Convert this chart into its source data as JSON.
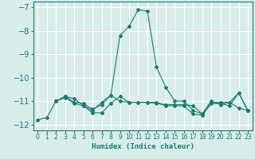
{
  "title": "",
  "xlabel": "Humidex (Indice chaleur)",
  "ylabel": "",
  "bg_color": "#d8ecea",
  "grid_color": "#ffffff",
  "line_color": "#1a7a6e",
  "xlim": [
    -0.5,
    23.5
  ],
  "ylim": [
    -12.25,
    -6.75
  ],
  "yticks": [
    -12,
    -11,
    -10,
    -9,
    -8,
    -7
  ],
  "xticks": [
    0,
    1,
    2,
    3,
    4,
    5,
    6,
    7,
    8,
    9,
    10,
    11,
    12,
    13,
    14,
    15,
    16,
    17,
    18,
    19,
    20,
    21,
    22,
    23
  ],
  "series": [
    {
      "x": [
        0,
        1,
        2,
        3,
        4,
        5,
        6,
        7,
        8,
        9,
        10,
        11,
        12,
        13,
        14,
        15,
        16,
        17,
        18,
        19,
        20,
        21,
        22,
        23
      ],
      "y": [
        -11.8,
        -11.7,
        -11.0,
        -10.8,
        -10.9,
        -11.2,
        -11.4,
        -11.05,
        -10.75,
        -8.2,
        -7.8,
        -7.1,
        -7.15,
        -9.55,
        -10.4,
        -11.0,
        -11.0,
        -11.4,
        -11.55,
        -11.0,
        -11.15,
        -11.05,
        -10.65,
        -11.4
      ]
    },
    {
      "x": [
        2,
        3,
        4,
        5,
        6,
        7,
        8,
        9,
        10,
        11,
        12,
        13,
        14,
        15,
        16,
        17,
        18,
        19,
        20,
        21,
        22,
        23
      ],
      "y": [
        -11.0,
        -10.8,
        -11.05,
        -11.1,
        -11.35,
        -11.15,
        -10.75,
        -11.0,
        -11.05,
        -11.05,
        -11.05,
        -11.1,
        -11.15,
        -11.15,
        -11.15,
        -11.2,
        -11.55,
        -11.05,
        -11.05,
        -11.05,
        -11.3,
        -11.4
      ]
    },
    {
      "x": [
        2,
        3,
        4,
        5,
        6,
        7,
        8,
        9,
        10,
        11,
        12,
        13,
        14,
        15,
        16,
        17,
        18,
        19,
        20,
        21,
        22,
        23
      ],
      "y": [
        -11.0,
        -10.85,
        -11.1,
        -11.2,
        -11.5,
        -11.5,
        -11.1,
        -10.8,
        -11.05,
        -11.05,
        -11.05,
        -11.05,
        -11.2,
        -11.2,
        -11.2,
        -11.55,
        -11.6,
        -11.1,
        -11.1,
        -11.2,
        -10.65,
        -11.4
      ]
    }
  ]
}
